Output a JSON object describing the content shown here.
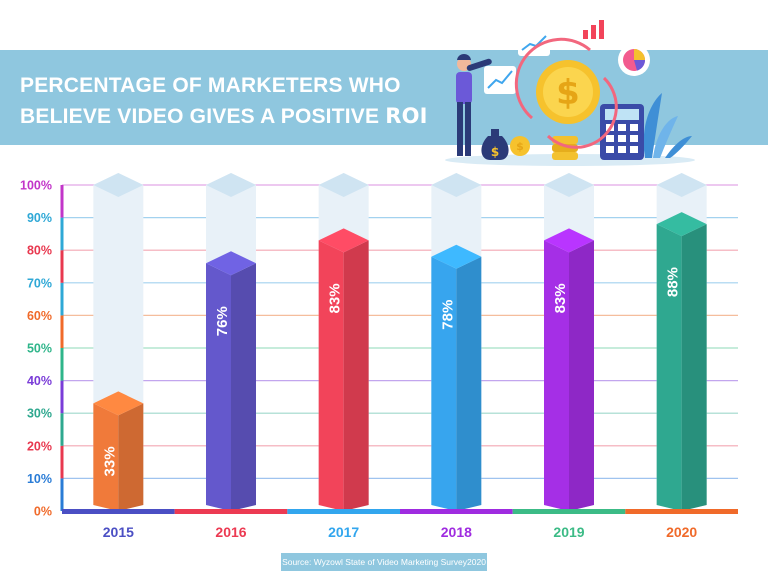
{
  "title": {
    "line1": "PERCENTAGE OF MARKETERS WHO",
    "line2_prefix": "BELIEVE VIDEO GIVES A POSITIVE ",
    "line2_emphasis": "ROI"
  },
  "source": "Source: Wyzowl State of Video Marketing Survey2020",
  "colors": {
    "banner": "#8fc7df",
    "track": "#e8f1f8",
    "track_top": "#cfe4f2"
  },
  "chart_data": {
    "type": "bar",
    "title": "PERCENTAGE OF MARKETERS WHO BELIEVE VIDEO GIVES A POSITIVE ROI",
    "categories": [
      "2015",
      "2016",
      "2017",
      "2018",
      "2019",
      "2020"
    ],
    "values": [
      33,
      76,
      83,
      78,
      83,
      88
    ],
    "value_labels": [
      "33%",
      "76%",
      "83%",
      "78%",
      "83%",
      "88%"
    ],
    "ylim": [
      0,
      100
    ],
    "yticks": [
      "0%",
      "10%",
      "20%",
      "30%",
      "40%",
      "50%",
      "60%",
      "70%",
      "80%",
      "90%",
      "100%"
    ],
    "grid": true,
    "bar_colors": [
      "#f07a3a",
      "#6458cc",
      "#f2445a",
      "#37a5ee",
      "#a52fe6",
      "#2fa890"
    ],
    "category_colors": [
      "#4b4fc4",
      "#ec3a52",
      "#32a6ee",
      "#9f2be0",
      "#3cbb86",
      "#f06a2a"
    ],
    "ytick_colors": [
      "#f06a2a",
      "#2a7cd6",
      "#e8384f",
      "#2fa88f",
      "#7a3cd8",
      "#2fb58a",
      "#f06a2a",
      "#2fa8d6",
      "#e8384f",
      "#2fa8d6",
      "#c235c9"
    ]
  }
}
